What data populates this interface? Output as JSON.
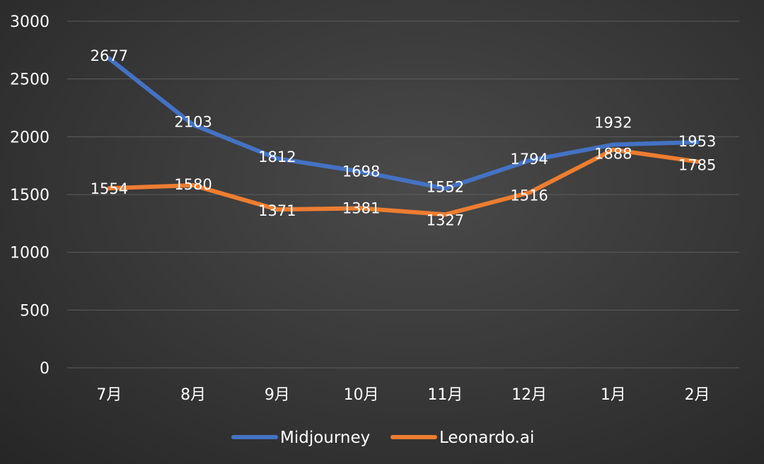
{
  "chart_data": {
    "type": "line",
    "title": "",
    "xlabel": "",
    "ylabel": "",
    "categories": [
      "7月",
      "8月",
      "9月",
      "10月",
      "11月",
      "12月",
      "1月",
      "2月"
    ],
    "ylim": [
      0,
      3000
    ],
    "yticks": [
      0,
      500,
      1000,
      1500,
      2000,
      2500,
      3000
    ],
    "grid": true,
    "legend_position": "bottom",
    "series": [
      {
        "name": "Midjourney",
        "color": "#4472c4",
        "values": [
          2677,
          2103,
          1812,
          1698,
          1552,
          1794,
          1932,
          1953
        ]
      },
      {
        "name": "Leonardo.ai",
        "color": "#ed7d31",
        "values": [
          1554,
          1580,
          1371,
          1381,
          1327,
          1516,
          1888,
          1785
        ]
      }
    ]
  }
}
